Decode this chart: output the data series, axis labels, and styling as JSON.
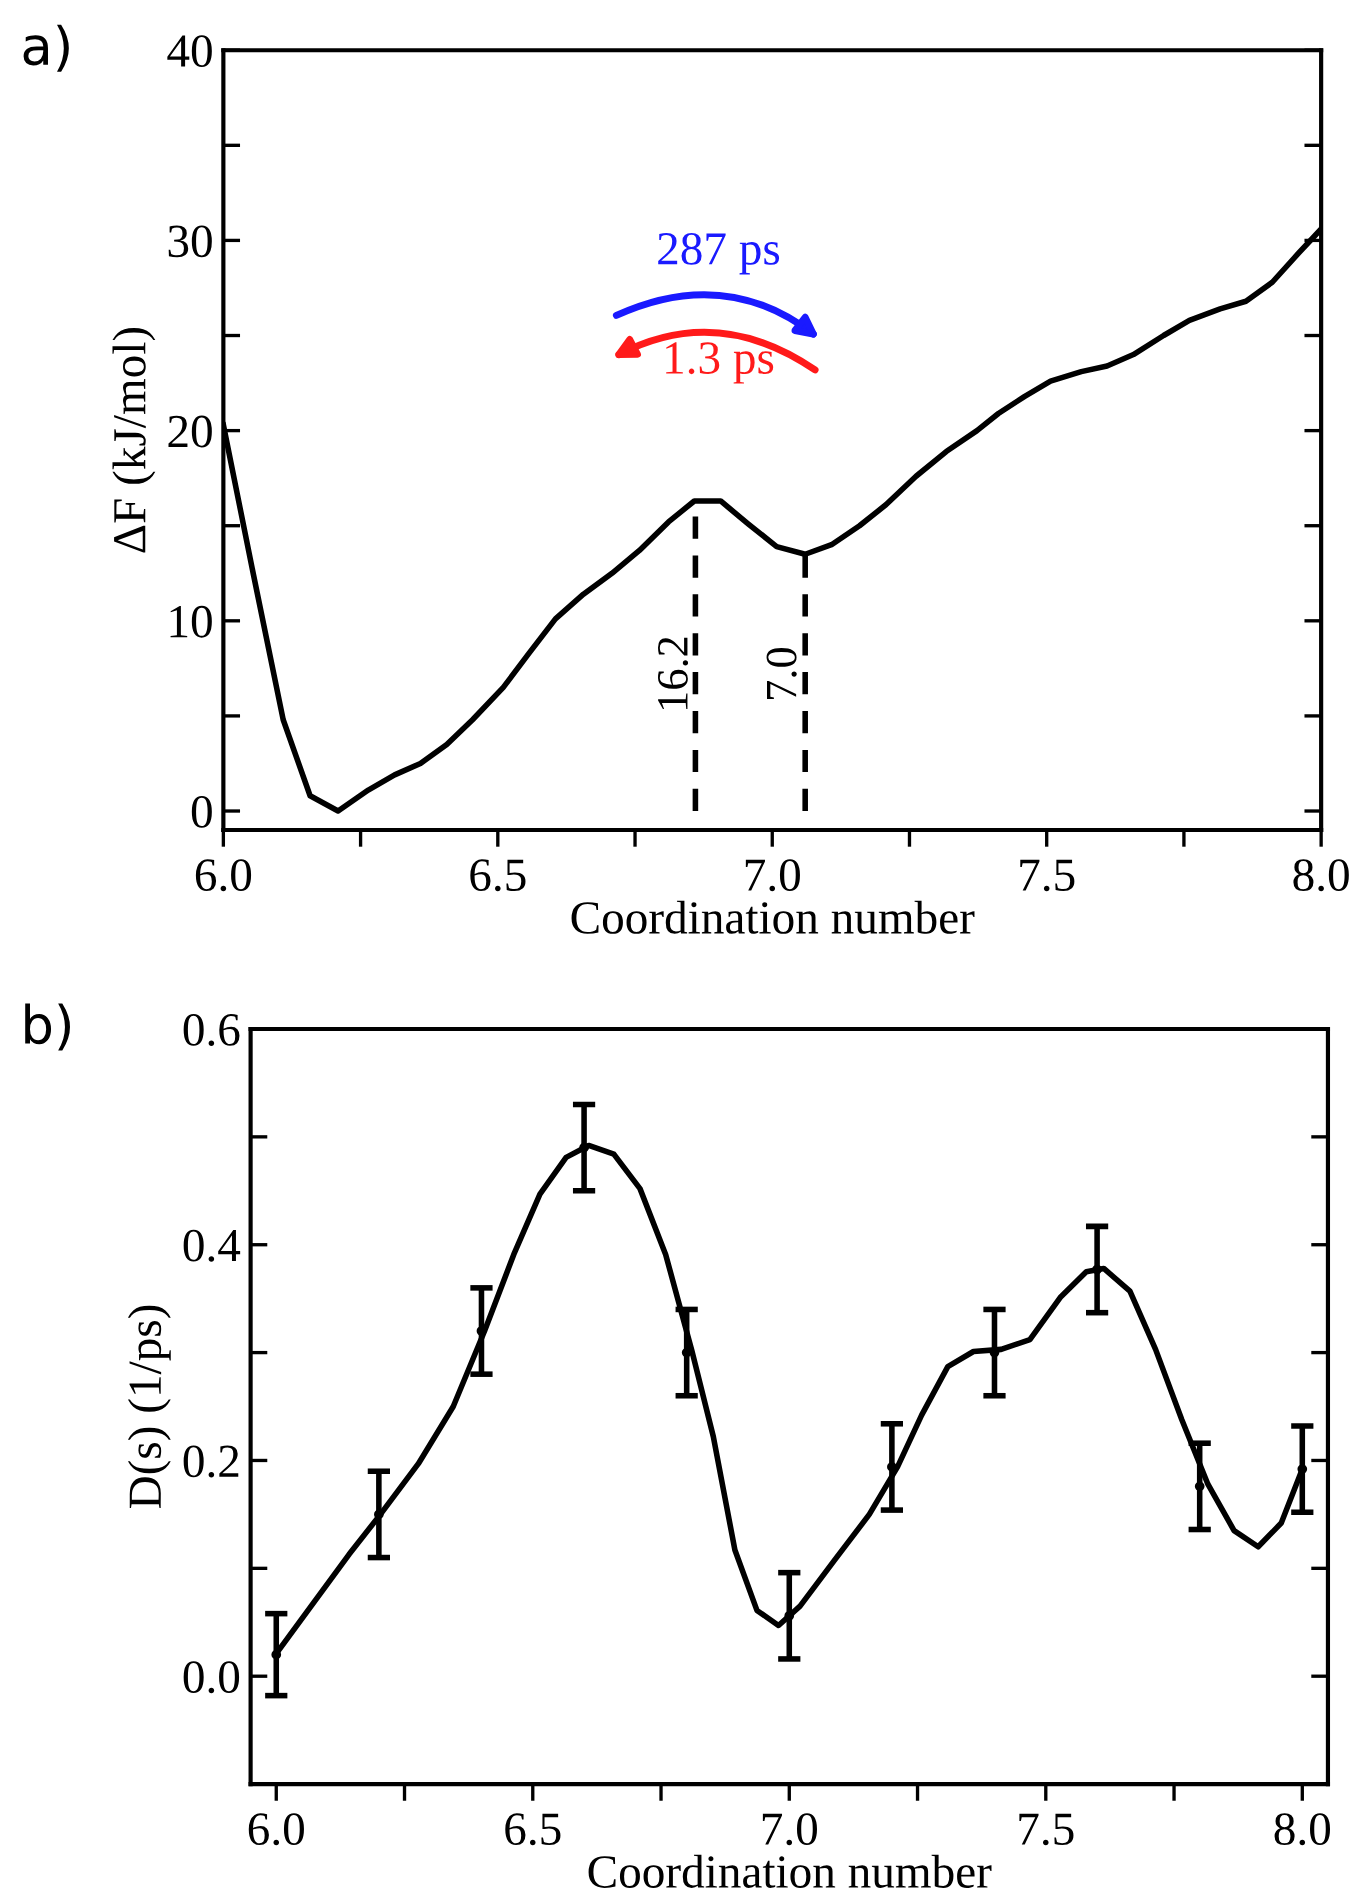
{
  "chart_data": [
    {
      "type": "line",
      "xlabel": "Coordination number",
      "ylabel": "ΔF (kJ/mol)",
      "xlim": [
        6.0,
        8.0
      ],
      "ylim": [
        -1,
        40
      ],
      "xticks": [
        {
          "value": 6,
          "label": "6.0"
        },
        {
          "value": 6.25,
          "label": null
        },
        {
          "value": 6.5,
          "label": "6.5"
        },
        {
          "value": 6.75,
          "label": null
        },
        {
          "value": 7,
          "label": "7.0"
        },
        {
          "value": 7.25,
          "label": null
        },
        {
          "value": 7.5,
          "label": "7.5"
        },
        {
          "value": 7.75,
          "label": null
        },
        {
          "value": 8,
          "label": "8.0"
        }
      ],
      "yticks": [
        {
          "value": 0,
          "label": "0"
        },
        {
          "value": 5,
          "label": null
        },
        {
          "value": 10,
          "label": "10"
        },
        {
          "value": 15,
          "label": null
        },
        {
          "value": 20,
          "label": "20"
        },
        {
          "value": 25,
          "label": null
        },
        {
          "value": 30,
          "label": "30"
        },
        {
          "value": 35,
          "label": null
        },
        {
          "value": 40,
          "label": "40"
        }
      ],
      "series": [
        {
          "color": "#000000",
          "x": [
            6.0,
            6.055,
            6.109,
            6.158,
            6.209,
            6.264,
            6.312,
            6.359,
            6.407,
            6.454,
            6.51,
            6.557,
            6.605,
            6.656,
            6.708,
            6.758,
            6.811,
            6.858,
            6.906,
            6.956,
            7.008,
            7.06,
            7.108,
            7.159,
            7.207,
            7.262,
            7.317,
            7.373,
            7.412,
            7.46,
            7.507,
            7.563,
            7.61,
            7.658,
            7.713,
            7.76,
            7.816,
            7.863,
            7.911,
            7.958,
            8.0
          ],
          "values": [
            20.3,
            12.4,
            4.8,
            0.8,
            0.0,
            1.1,
            1.9,
            2.5,
            3.5,
            4.8,
            6.5,
            8.3,
            10.1,
            11.4,
            12.5,
            13.7,
            15.2,
            16.3,
            16.3,
            15.1,
            13.9,
            13.5,
            14.0,
            15.0,
            16.1,
            17.6,
            18.9,
            20.0,
            20.9,
            21.8,
            22.6,
            23.1,
            23.4,
            24.0,
            25.0,
            25.8,
            26.4,
            26.8,
            27.8,
            29.3,
            30.6
          ]
        },
        {
          "color": "#000000",
          "line_style": "dashed",
          "x": [
            6.86,
            6.86
          ],
          "values": [
            0,
            16.3
          ]
        },
        {
          "color": "#000000",
          "line_style": "dashed",
          "x": [
            7.06,
            7.06
          ],
          "values": [
            0,
            13.5
          ]
        }
      ],
      "annotations": [
        "a)",
        "16.2",
        "7.0",
        "287 ps",
        "1.3 ps"
      ]
    },
    {
      "type": "line",
      "xlabel": "Coordination number",
      "ylabel": "D(s) (1/ps)",
      "xlim": [
        5.95,
        8.05
      ],
      "ylim": [
        -0.1,
        0.6
      ],
      "xticks": [
        {
          "value": 6,
          "label": "6.0"
        },
        {
          "value": 6.25,
          "label": null
        },
        6.5,
        {
          "value": 6.75,
          "label": null
        },
        {
          "value": 7,
          "label": "7.0"
        },
        {
          "value": 7.25,
          "label": null
        },
        7.5,
        {
          "value": 7.75,
          "label": null
        },
        {
          "value": 8,
          "label": "8.0"
        }
      ],
      "yticks": [
        {
          "value": 0,
          "label": "0.0"
        },
        {
          "value": 0.1,
          "label": null
        },
        0.2,
        {
          "value": 0.3,
          "label": null
        },
        0.4,
        {
          "value": 0.5,
          "label": null
        },
        0.6
      ],
      "series": [
        {
          "color": "#000000",
          "x": [
            6.0,
            6.074,
            6.142,
            6.203,
            6.277,
            6.345,
            6.406,
            6.463,
            6.514,
            6.565,
            6.609,
            6.658,
            6.709,
            6.759,
            6.81,
            6.852,
            6.894,
            6.937,
            6.979,
            7.021,
            7.089,
            7.156,
            7.211,
            7.258,
            7.309,
            7.359,
            7.413,
            7.469,
            7.528,
            7.579,
            7.613,
            7.664,
            7.714,
            7.765,
            7.816,
            7.867,
            7.914,
            7.959,
            8.0
          ],
          "values": [
            0.021,
            0.069,
            0.113,
            0.15,
            0.197,
            0.25,
            0.32,
            0.391,
            0.447,
            0.481,
            0.492,
            0.484,
            0.452,
            0.391,
            0.302,
            0.222,
            0.117,
            0.061,
            0.047,
            0.065,
            0.108,
            0.15,
            0.194,
            0.242,
            0.287,
            0.301,
            0.303,
            0.312,
            0.351,
            0.375,
            0.378,
            0.357,
            0.303,
            0.238,
            0.178,
            0.135,
            0.12,
            0.142,
            0.192
          ]
        },
        {
          "type": "scatter",
          "color": "#000000",
          "x": [
            6.0,
            6.2,
            6.4,
            6.6,
            6.8,
            7.0,
            7.2,
            7.4,
            7.6,
            7.8,
            8.0
          ],
          "values": [
            0.02,
            0.15,
            0.32,
            0.49,
            0.3,
            0.056,
            0.194,
            0.3,
            0.377,
            0.176,
            0.192
          ],
          "errors": [
            0.038,
            0.04,
            0.04,
            0.04,
            0.04,
            0.04,
            0.04,
            0.04,
            0.04,
            0.04,
            0.04
          ]
        }
      ],
      "annotations": [
        "b)"
      ]
    }
  ]
}
